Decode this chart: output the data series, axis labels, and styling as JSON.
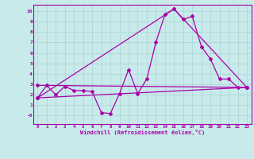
{
  "xlabel": "Windchill (Refroidissement éolien,°C)",
  "bg_color": "#c8eaea",
  "grid_color": "#b0d8d8",
  "line_color": "#aa00aa",
  "xlim_min": -0.5,
  "xlim_max": 23.5,
  "ylim_min": -0.8,
  "ylim_max": 10.6,
  "xticks": [
    0,
    1,
    2,
    3,
    4,
    5,
    6,
    7,
    8,
    9,
    10,
    11,
    12,
    13,
    14,
    15,
    16,
    17,
    18,
    19,
    20,
    21,
    22,
    23
  ],
  "yticks": [
    0,
    1,
    2,
    3,
    4,
    5,
    6,
    7,
    8,
    9,
    10
  ],
  "ytick_labels": [
    "-0",
    "1",
    "2",
    "3",
    "4",
    "5",
    "6",
    "7",
    "8",
    "9",
    "10"
  ],
  "series1_x": [
    0,
    1,
    2,
    3,
    4,
    5,
    6,
    7,
    8,
    9,
    10,
    11,
    12,
    13,
    14,
    15,
    16,
    17,
    18,
    19,
    20,
    21,
    22,
    23
  ],
  "series1_y": [
    1.7,
    2.9,
    2.0,
    2.8,
    2.4,
    2.4,
    2.3,
    0.3,
    0.2,
    2.1,
    4.4,
    2.1,
    3.5,
    7.0,
    9.7,
    10.2,
    9.2,
    9.5,
    6.6,
    5.4,
    3.5,
    3.5,
    2.7,
    2.7
  ],
  "series2_x": [
    0,
    23
  ],
  "series2_y": [
    1.7,
    2.7
  ],
  "series3_x": [
    0,
    15,
    23
  ],
  "series3_y": [
    1.7,
    10.2,
    2.7
  ],
  "series4_x": [
    0,
    23
  ],
  "series4_y": [
    2.9,
    2.7
  ],
  "marker": "D",
  "markersize": 2.0,
  "linewidth": 0.9,
  "tick_fontsize": 4.2,
  "xlabel_fontsize": 5.0
}
